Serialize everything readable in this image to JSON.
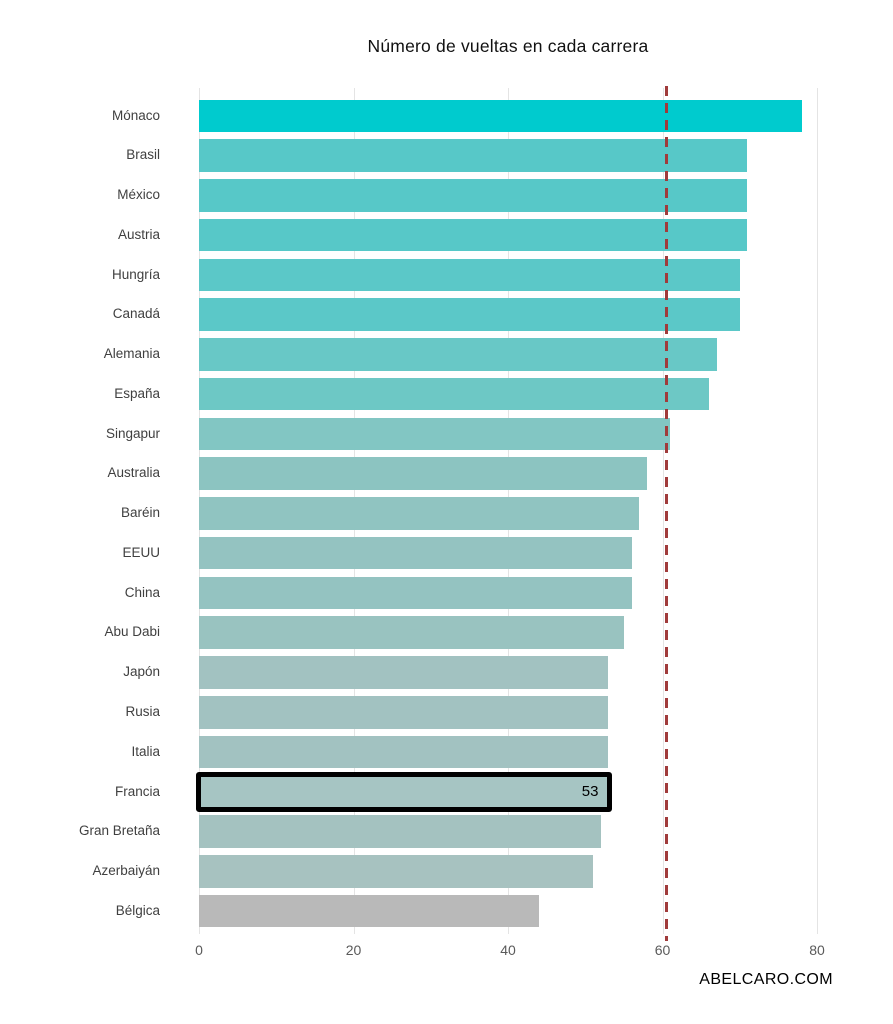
{
  "title": "Número de vueltas en cada carrera",
  "watermark": "ABELCARO.COM",
  "chart_data": {
    "type": "bar",
    "orientation": "horizontal",
    "title": "Número de vueltas en cada carrera",
    "xlabel": "",
    "ylabel": "",
    "categories": [
      "Mónaco",
      "Brasil",
      "México",
      "Austria",
      "Hungría",
      "Canadá",
      "Alemania",
      "España",
      "Singapur",
      "Australia",
      "Baréin",
      "EEUU",
      "China",
      "Abu Dabi",
      "Japón",
      "Rusia",
      "Italia",
      "Francia",
      "Gran Bretaña",
      "Azerbaiyán",
      "Bélgica"
    ],
    "values": [
      78,
      71,
      71,
      71,
      70,
      70,
      67,
      66,
      61,
      58,
      57,
      56,
      56,
      55,
      53,
      53,
      53,
      53,
      52,
      51,
      44
    ],
    "bar_colors": [
      "#00CBCE",
      "#57C8C8",
      "#57C8C8",
      "#57C8C8",
      "#5BC8C8",
      "#5BC8C8",
      "#68C8C6",
      "#6DC8C5",
      "#82C6C3",
      "#8CC4C1",
      "#90C4C1",
      "#94C3C1",
      "#94C3C1",
      "#99C3C0",
      "#A2C2C1",
      "#A2C2C1",
      "#A2C2C1",
      "#A6C5C3",
      "#A4C2C0",
      "#A7C2C0",
      "#B9B9B9"
    ],
    "x_ticks": [
      0,
      20,
      40,
      60,
      80
    ],
    "xlim": [
      0,
      85.5
    ],
    "grid": "vertical",
    "legend": "none",
    "reference_line": {
      "value": 60.3,
      "style": "dashed",
      "color": "#A03B3B"
    },
    "highlight": {
      "category": "Francia",
      "value_label": "53",
      "border_color": "#000000",
      "fill_color": "#A6C5C3"
    }
  }
}
